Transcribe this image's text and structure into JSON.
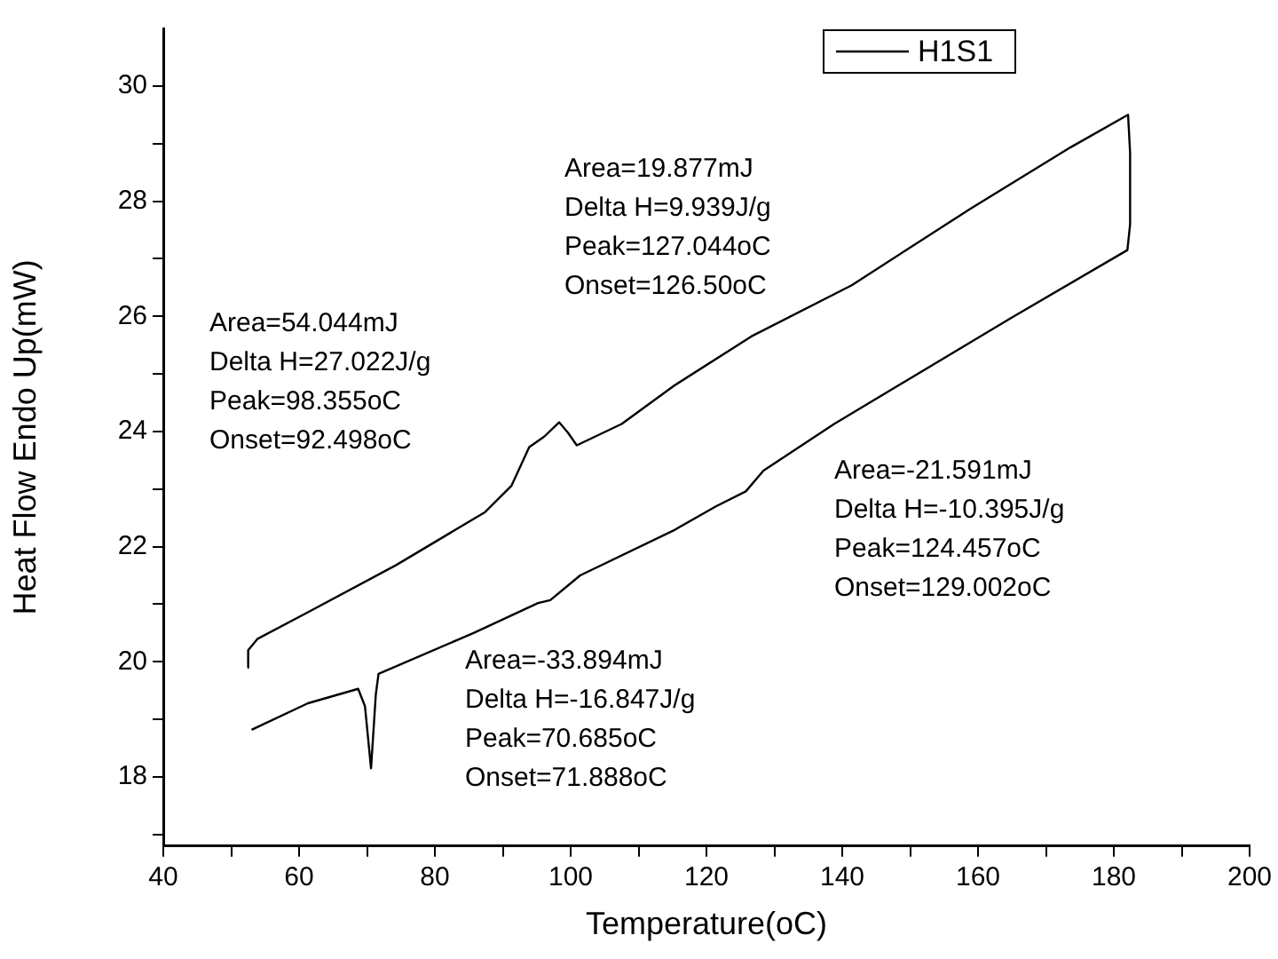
{
  "chart_data": {
    "type": "line",
    "xlabel": "Temperature(oC)",
    "ylabel": "Heat Flow Endo Up(mW)",
    "xlim": [
      40,
      200
    ],
    "ylim": [
      16.8,
      31
    ],
    "xticks": [
      40,
      {
        "value": 50,
        "label": null
      },
      60,
      {
        "value": 70,
        "label": null
      },
      80,
      {
        "value": 90,
        "label": null
      },
      100,
      {
        "value": 110,
        "label": null
      },
      120,
      {
        "value": 130,
        "label": null
      },
      140,
      {
        "value": 150,
        "label": null
      },
      160,
      {
        "value": 170,
        "label": null
      },
      180,
      {
        "value": 190,
        "label": null
      },
      200
    ],
    "yticks": [
      {
        "value": 17,
        "label": null
      },
      18,
      {
        "value": 19,
        "label": null
      },
      20,
      {
        "value": 21,
        "label": null
      },
      22,
      {
        "value": 23,
        "label": null
      },
      24,
      {
        "value": 25,
        "label": null
      },
      26,
      {
        "value": 27,
        "label": null
      },
      28,
      {
        "value": 29,
        "label": null
      },
      30
    ],
    "grid": false,
    "legend": "top right",
    "marker": "none",
    "line_style": "solid",
    "series": [
      {
        "name": "H1S1",
        "color": "#000000",
        "x": [
          52.4,
          52.5,
          53.9,
          61.3,
          74.3,
          87.4,
          91.3,
          93.9,
          96.1,
          98.3,
          99.6,
          100.9,
          107.5,
          115.3,
          126.6,
          141.4,
          158.9,
          173.7,
          182.1,
          182.4,
          182.4,
          182.0,
          165.0,
          138.8,
          128.4,
          125.8,
          121.4,
          115.3,
          101.4,
          97.0,
          95.2,
          85.7,
          71.7,
          71.3,
          70.6,
          69.7,
          68.7,
          61.3,
          53.0
        ],
        "values": [
          19.9,
          20.2,
          20.4,
          20.86,
          21.68,
          22.6,
          23.06,
          23.73,
          23.91,
          24.16,
          23.98,
          23.76,
          24.13,
          24.8,
          25.65,
          26.54,
          27.87,
          28.94,
          29.5,
          28.84,
          27.6,
          27.15,
          25.98,
          24.13,
          23.32,
          22.96,
          22.7,
          22.29,
          21.5,
          21.07,
          21.02,
          20.5,
          19.79,
          19.43,
          18.15,
          19.23,
          19.53,
          19.28,
          18.82
        ]
      }
    ],
    "annotations": [
      "Area=54.044mJ\nDelta H=27.022J/g\nPeak=98.355oC\nOnset=92.498oC",
      "Area=19.877mJ\nDelta H=9.939J/g\nPeak=127.044oC\nOnset=126.50oC",
      "Area=-21.591mJ\nDelta H=-10.395J/g\nPeak=124.457oC\nOnset=129.002oC",
      "Area=-33.894mJ\nDelta H=-16.847J/g\nPeak=70.685oC\nOnset=71.888oC"
    ]
  }
}
